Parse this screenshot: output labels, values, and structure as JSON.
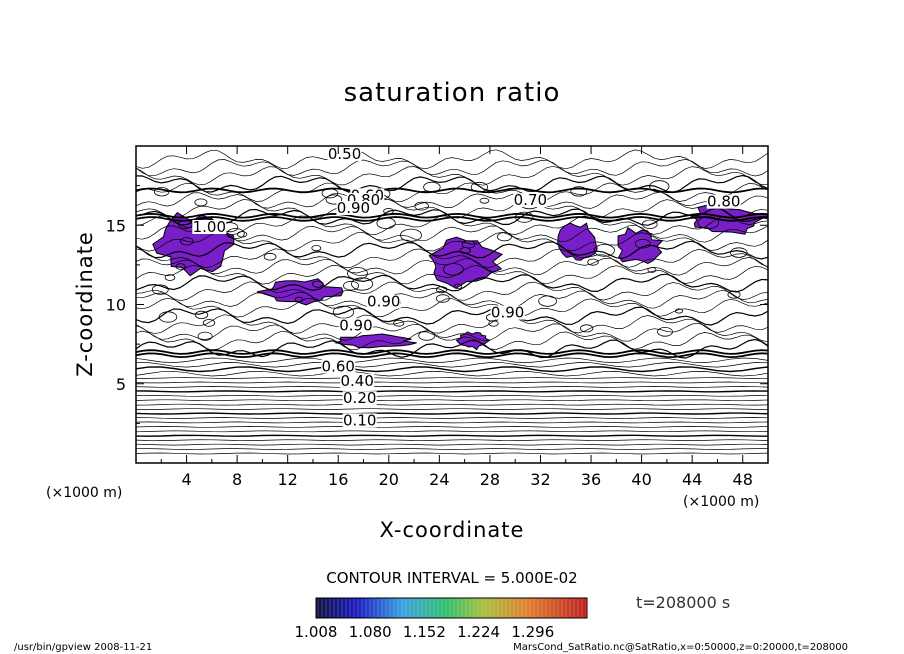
{
  "chart_data": {
    "type": "contour",
    "title": "saturation ratio",
    "xlabel": "X-coordinate",
    "ylabel": "Z-coordinate",
    "x_unit": "(×1000 m)",
    "y_unit": "(×1000 m)",
    "xlim": [
      0,
      50
    ],
    "ylim": [
      0,
      20
    ],
    "x_ticks": [
      4,
      8,
      12,
      16,
      20,
      24,
      28,
      32,
      36,
      40,
      44,
      48
    ],
    "y_ticks": [
      5,
      10,
      15
    ],
    "contour_interval_text": "CONTOUR INTERVAL = 5.000E-02",
    "contour_labels": [
      {
        "text": "0.50",
        "x": 16.5,
        "z": 19.3
      },
      {
        "text": "0.60",
        "x": 18.3,
        "z": 16.7
      },
      {
        "text": "0.80",
        "x": 18.0,
        "z": 16.4
      },
      {
        "text": "0.90",
        "x": 17.2,
        "z": 15.9
      },
      {
        "text": "0.70",
        "x": 31.2,
        "z": 16.4
      },
      {
        "text": "0.80",
        "x": 46.5,
        "z": 16.3
      },
      {
        "text": "1.00",
        "x": 5.8,
        "z": 14.7
      },
      {
        "text": "0.90",
        "x": 19.6,
        "z": 10.0
      },
      {
        "text": "0.90",
        "x": 29.4,
        "z": 9.3
      },
      {
        "text": "0.90",
        "x": 17.4,
        "z": 8.5
      },
      {
        "text": "0.60",
        "x": 16.0,
        "z": 5.9
      },
      {
        "text": "0.40",
        "x": 17.5,
        "z": 5.0
      },
      {
        "text": "0.20",
        "x": 17.7,
        "z": 3.9
      },
      {
        "text": "0.10",
        "x": 17.7,
        "z": 2.5
      }
    ],
    "colorbar": {
      "tick_labels": [
        "1.008",
        "1.080",
        "1.152",
        "1.224",
        "1.296"
      ],
      "range": [
        1.008,
        1.368
      ]
    },
    "time_label": "t=208000 s",
    "supersaturated_regions": [
      {
        "x": [
          1.5,
          8.0
        ],
        "z": [
          11.8,
          15.8
        ]
      },
      {
        "x": [
          10.0,
          16.0
        ],
        "z": [
          10.0,
          11.6
        ]
      },
      {
        "x": [
          22.8,
          28.8
        ],
        "z": [
          11.2,
          14.2
        ]
      },
      {
        "x": [
          33.5,
          36.5
        ],
        "z": [
          12.6,
          15.2
        ]
      },
      {
        "x": [
          38.0,
          41.5
        ],
        "z": [
          12.5,
          14.8
        ]
      },
      {
        "x": [
          43.5,
          50.0
        ],
        "z": [
          14.4,
          16.3
        ]
      },
      {
        "x": [
          25.5,
          28.0
        ],
        "z": [
          7.2,
          8.3
        ]
      },
      {
        "x": [
          16.0,
          22.0
        ],
        "z": [
          7.3,
          8.1
        ]
      }
    ]
  },
  "footer": {
    "left": "/usr/bin/gpview   2008-11-21",
    "right": "MarsCond_SatRatio.nc@SatRatio,x=0:50000,z=0:20000,t=208000"
  }
}
